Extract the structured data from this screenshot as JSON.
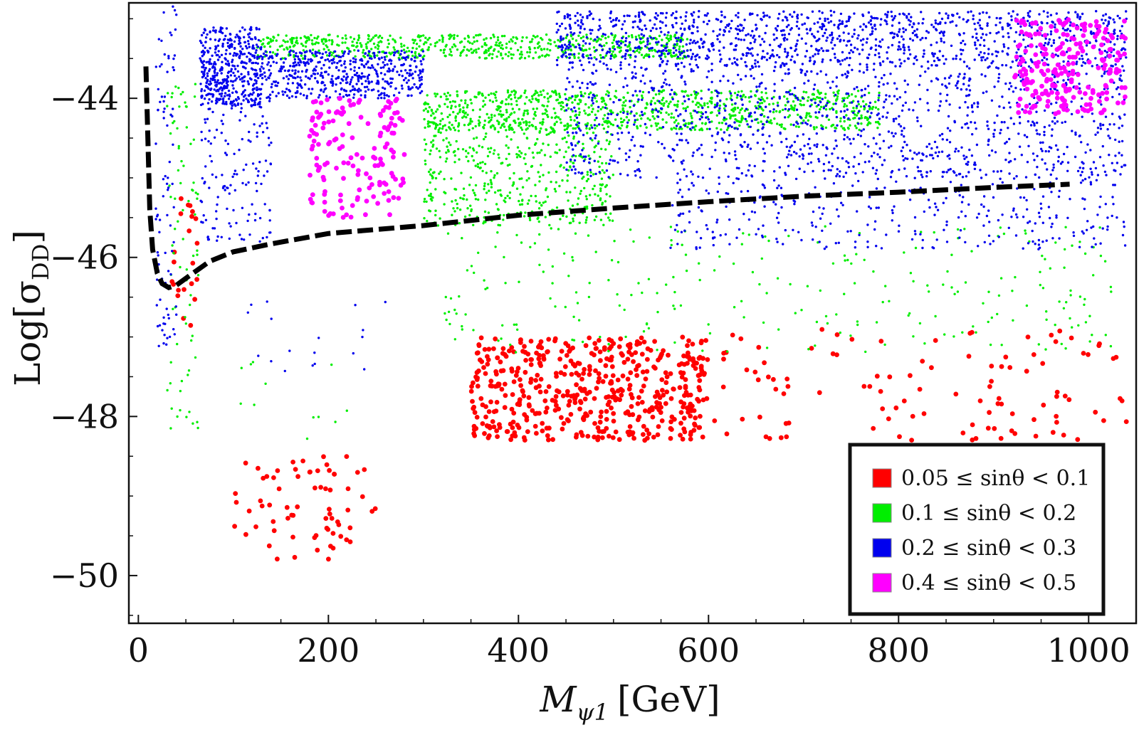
{
  "chart_data": {
    "type": "scatter",
    "title": "",
    "xlabel": {
      "main": "M",
      "sub": "ψ1",
      "unit": "[GeV]"
    },
    "ylabel": {
      "main": "Log[σ",
      "sub": "DD",
      "close": "]"
    },
    "xlim": [
      -10,
      1050
    ],
    "ylim": [
      -50.6,
      -42.8
    ],
    "xticks": [
      0,
      200,
      400,
      600,
      800,
      1000
    ],
    "yticks": [
      -44,
      -46,
      -48,
      -50
    ],
    "xtick_labels": [
      "0",
      "200",
      "400",
      "600",
      "800",
      "1000"
    ],
    "ytick_labels": [
      "-44",
      "-46",
      "-48",
      "-50"
    ],
    "grid": false,
    "legend_position": "bottom-right",
    "series": [
      {
        "name": "0.05 ≤ sinθ < 0.1",
        "color": "#ff0000",
        "marker": "large",
        "regions": [
          {
            "x": [
              100,
              250
            ],
            "y": [
              -49.8,
              -48.5
            ],
            "count": 70
          },
          {
            "x": [
              350,
              600
            ],
            "y": [
              -48.3,
              -47.0
            ],
            "count": 520
          },
          {
            "x": [
              600,
              1040
            ],
            "y": [
              -48.3,
              -46.9
            ],
            "count": 110
          },
          {
            "x": [
              35,
              62
            ],
            "y": [
              -46.9,
              -45.0
            ],
            "count": 22
          }
        ]
      },
      {
        "name": "0.1 ≤ sinθ < 0.2",
        "color": "#00ee00",
        "marker": "small",
        "regions": [
          {
            "x": [
              125,
              580
            ],
            "y": [
              -43.5,
              -43.2
            ],
            "count": 650
          },
          {
            "x": [
              300,
              780
            ],
            "y": [
              -44.4,
              -43.9
            ],
            "count": 900
          },
          {
            "x": [
              300,
              500
            ],
            "y": [
              -45.6,
              -44.3
            ],
            "count": 500
          },
          {
            "x": [
              320,
              1030
            ],
            "y": [
              -47.2,
              -45.6
            ],
            "count": 260
          },
          {
            "x": [
              30,
              65
            ],
            "y": [
              -48.2,
              -43.8
            ],
            "count": 80
          },
          {
            "x": [
              100,
              260
            ],
            "y": [
              -48.3,
              -47.3
            ],
            "count": 12
          }
        ]
      },
      {
        "name": "0.2 ≤ sinθ < 0.3",
        "color": "#0000ee",
        "marker": "small",
        "regions": [
          {
            "x": [
              65,
              130
            ],
            "y": [
              -44.1,
              -43.1
            ],
            "count": 450
          },
          {
            "x": [
              130,
              300
            ],
            "y": [
              -44.0,
              -43.4
            ],
            "count": 500
          },
          {
            "x": [
              65,
              140
            ],
            "y": [
              -45.8,
              -44.0
            ],
            "count": 140
          },
          {
            "x": [
              440,
              1040
            ],
            "y": [
              -43.6,
              -42.9
            ],
            "count": 1200
          },
          {
            "x": [
              450,
              1040
            ],
            "y": [
              -45.0,
              -43.6
            ],
            "count": 1100
          },
          {
            "x": [
              560,
              1040
            ],
            "y": [
              -45.9,
              -45.0
            ],
            "count": 320
          },
          {
            "x": [
              18,
              40
            ],
            "y": [
              -47.2,
              -42.7
            ],
            "count": 90
          },
          {
            "x": [
              100,
              260
            ],
            "y": [
              -47.5,
              -46.5
            ],
            "count": 18
          }
        ]
      },
      {
        "name": "0.4 ≤ sinθ < 0.5",
        "color": "#ff00ff",
        "marker": "large",
        "regions": [
          {
            "x": [
              180,
              280
            ],
            "y": [
              -45.5,
              -44.0
            ],
            "count": 150
          },
          {
            "x": [
              920,
              1040
            ],
            "y": [
              -44.2,
              -43.0
            ],
            "count": 230
          }
        ]
      }
    ],
    "bound_curve": {
      "style": "dashed",
      "color": "#000000",
      "x": [
        8,
        10,
        12,
        15,
        20,
        25,
        32,
        40,
        55,
        75,
        100,
        140,
        200,
        300,
        400,
        500,
        600,
        700,
        800,
        900,
        980
      ],
      "y": [
        -43.6,
        -44.5,
        -45.4,
        -45.9,
        -46.2,
        -46.33,
        -46.38,
        -46.35,
        -46.22,
        -46.05,
        -45.93,
        -45.83,
        -45.7,
        -45.6,
        -45.47,
        -45.38,
        -45.3,
        -45.23,
        -45.18,
        -45.12,
        -45.08
      ]
    }
  }
}
